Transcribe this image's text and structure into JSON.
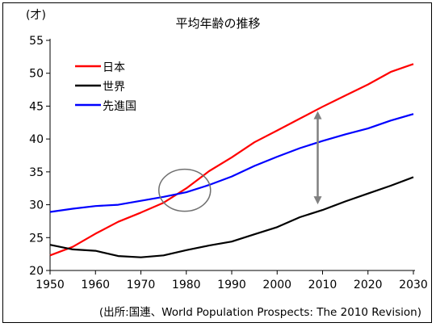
{
  "chart_data": {
    "type": "line",
    "title": "平均年齢の推移",
    "ylabel": "(才)",
    "xlabel": "",
    "source": "(出所:国連、World Population Prospects: The 2010 Revision)",
    "xlim": [
      1950,
      2030
    ],
    "ylim": [
      20,
      55
    ],
    "xticks": [
      1950,
      1960,
      1970,
      1980,
      1990,
      2000,
      2010,
      2020,
      2030
    ],
    "yticks": [
      20,
      25,
      30,
      35,
      40,
      45,
      50,
      55
    ],
    "grid": false,
    "legend": "top-left",
    "x": [
      1950,
      1955,
      1960,
      1965,
      1970,
      1975,
      1980,
      1985,
      1990,
      1995,
      2000,
      2005,
      2010,
      2015,
      2020,
      2025,
      2030
    ],
    "series": [
      {
        "name": "日本",
        "color": "#ff0000",
        "values": [
          22.3,
          23.6,
          25.6,
          27.4,
          28.8,
          30.3,
          32.5,
          35.1,
          37.2,
          39.5,
          41.3,
          43.1,
          44.9,
          46.6,
          48.3,
          50.2,
          51.4
        ]
      },
      {
        "name": "世界",
        "color": "#000000",
        "values": [
          23.9,
          23.2,
          23.0,
          22.2,
          22.0,
          22.3,
          23.1,
          23.8,
          24.4,
          25.5,
          26.6,
          28.1,
          29.2,
          30.5,
          31.7,
          32.9,
          34.2
        ]
      },
      {
        "name": "先進国",
        "color": "#0000ff",
        "values": [
          28.9,
          29.4,
          29.8,
          30.0,
          30.6,
          31.2,
          31.9,
          33.0,
          34.3,
          35.9,
          37.3,
          38.6,
          39.7,
          40.7,
          41.6,
          42.8,
          43.8
        ]
      }
    ],
    "annotations": [
      {
        "type": "ellipse",
        "cx_year": 1980,
        "cy_value": 32.2
      },
      {
        "type": "double-arrow",
        "x_year": 2010,
        "from_value": 30.3,
        "to_value": 44.0,
        "color": "#808080"
      }
    ]
  }
}
